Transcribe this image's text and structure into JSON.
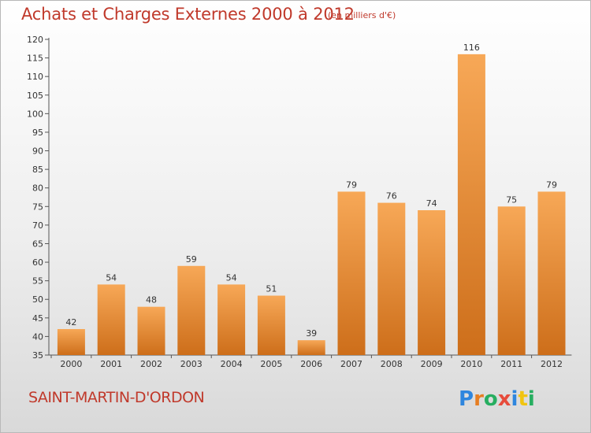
{
  "title": "Achats et Charges Externes 2000 à 2012",
  "subtitle": "(en milliers d'€)",
  "town": "SAINT-MARTIN-D'ORDON",
  "brand": {
    "letters": [
      "P",
      "r",
      "o",
      "x",
      "i",
      "t",
      "i"
    ],
    "colors": [
      "#2e86de",
      "#e67e22",
      "#27ae60",
      "#e74c3c",
      "#2e86de",
      "#f1c40f",
      "#27ae60"
    ]
  },
  "colors": {
    "bar": "#f0962f",
    "title": "#c0392b"
  },
  "chart_data": {
    "type": "bar",
    "categories": [
      "2000",
      "2001",
      "2002",
      "2003",
      "2004",
      "2005",
      "2006",
      "2007",
      "2008",
      "2009",
      "2010",
      "2011",
      "2012"
    ],
    "values": [
      42,
      54,
      48,
      59,
      54,
      51,
      39,
      79,
      76,
      74,
      116,
      75,
      79
    ],
    "title": "Achats et Charges Externes 2000 à 2012",
    "ylim": [
      35,
      120
    ],
    "yticks": [
      35,
      40,
      45,
      50,
      55,
      60,
      65,
      70,
      75,
      80,
      85,
      90,
      95,
      100,
      105,
      110,
      115,
      120
    ],
    "grid": false
  }
}
